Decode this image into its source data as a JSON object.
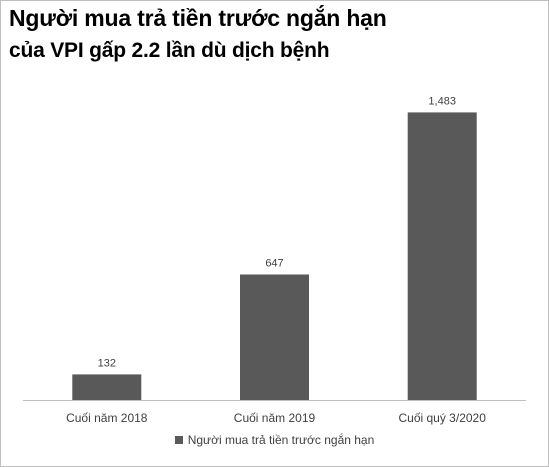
{
  "chart_data": {
    "type": "bar",
    "title": "Người mua trả tiền trước ngắn hạn",
    "subtitle": "của VPI gấp 2.2 lần dù dịch bệnh",
    "categories": [
      "Cuối năm 2018",
      "Cuối năm 2019",
      "Cuối quý 3/2020"
    ],
    "series": [
      {
        "name": "Người mua trả tiền trước ngắn hạn",
        "values": [
          132,
          647,
          1483
        ],
        "color": "#595959"
      }
    ],
    "data_labels": [
      "132",
      "647",
      "1,483"
    ],
    "ylim": [
      0,
      1650
    ],
    "grid": false,
    "legend_position": "bottom"
  }
}
